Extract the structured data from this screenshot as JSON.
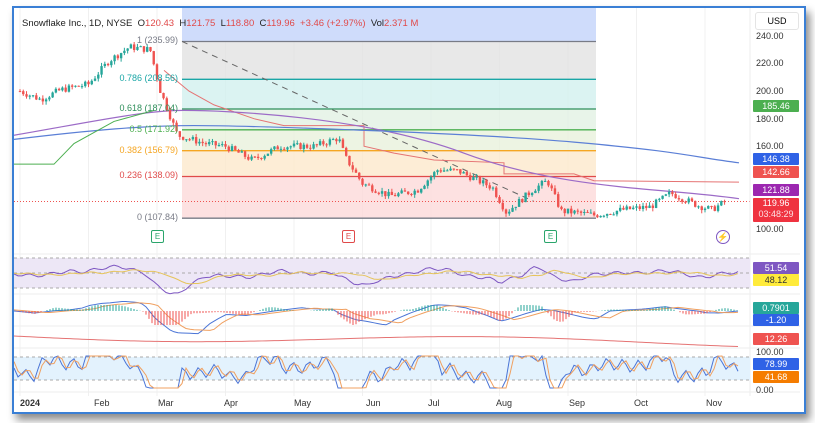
{
  "legend": {
    "symbol": "Snowflake Inc., 1D, NYSE",
    "open_label": "O",
    "open": "120.43",
    "high_label": "H",
    "high": "121.75",
    "low_label": "L",
    "low": "118.80",
    "close_label": "C",
    "close": "119.96",
    "change": "+3.46 (+2.97%)",
    "vol_label": "Vol",
    "vol": "2.371 M"
  },
  "currency": "USD",
  "price_axis": [
    "240.00",
    "220.00",
    "200.00",
    "180.00",
    "160.00",
    "100.00"
  ],
  "fib_levels": [
    {
      "label": "1 (235.99)",
      "price": 235.99,
      "color": "#787b86"
    },
    {
      "label": "0.786 (208.56)",
      "price": 208.56,
      "color": "#1aa6a6"
    },
    {
      "label": "0.618 (187.04)",
      "price": 187.04,
      "color": "#2f8f5b"
    },
    {
      "label": "0.5 (171.92)",
      "price": 171.92,
      "color": "#4caf50"
    },
    {
      "label": "0.382 (156.79)",
      "price": 156.79,
      "color": "#f5a623"
    },
    {
      "label": "0.236 (138.09)",
      "price": 138.09,
      "color": "#e04a4a"
    },
    {
      "label": "0 (107.84)",
      "price": 107.84,
      "color": "#787b86"
    }
  ],
  "badges": {
    "ma1": "185.46",
    "ma2": "146.38",
    "band": "142.66",
    "ma3": "121.88",
    "last": "119.96",
    "countdown": "03:48:29",
    "rsi": "51.54",
    "rsi_ma": "48.12",
    "macd": "0.7901",
    "signal": "-1.20",
    "ind3": "12.26",
    "stoch_top": "100.00",
    "stoch_k": "78.99",
    "stoch_d": "41.68",
    "stoch_bottom": "0.00"
  },
  "badge_colors": {
    "green": "#4caf50",
    "blue": "#2f62e6",
    "red": "#ef5350",
    "purple": "#9c27b0",
    "yellow": "#ffeb3b",
    "teal": "#26a69a",
    "orange": "#f57c00"
  },
  "earnings_marker": "E",
  "x_axis": [
    "2024",
    "Feb",
    "Mar",
    "Apr",
    "May",
    "Jun",
    "Jul",
    "Aug",
    "Sep",
    "Oct",
    "Nov"
  ],
  "chart_data": {
    "type": "candlestick",
    "ylabel": "USD",
    "ylim": [
      100,
      245
    ],
    "path_months": [
      0,
      0.3,
      0.6,
      1.0,
      1.3,
      1.6,
      1.9,
      2.05,
      2.3,
      2.7,
      3.0,
      3.4,
      3.8,
      4.3,
      4.65,
      4.75,
      5.0,
      5.4,
      5.8,
      6.1,
      6.4,
      6.9,
      7.1,
      7.5,
      7.7,
      7.9,
      8.1,
      8.4,
      8.8,
      9.2,
      9.5,
      9.9,
      10.1,
      10.3
    ],
    "path_prices": [
      200,
      194,
      201,
      205,
      222,
      232,
      230,
      200,
      168,
      162,
      160,
      150,
      160,
      160,
      166,
      152,
      133,
      124,
      128,
      143,
      142,
      130,
      112,
      129,
      135,
      113,
      112,
      110,
      114,
      116,
      126,
      117,
      114,
      119.96
    ]
  }
}
